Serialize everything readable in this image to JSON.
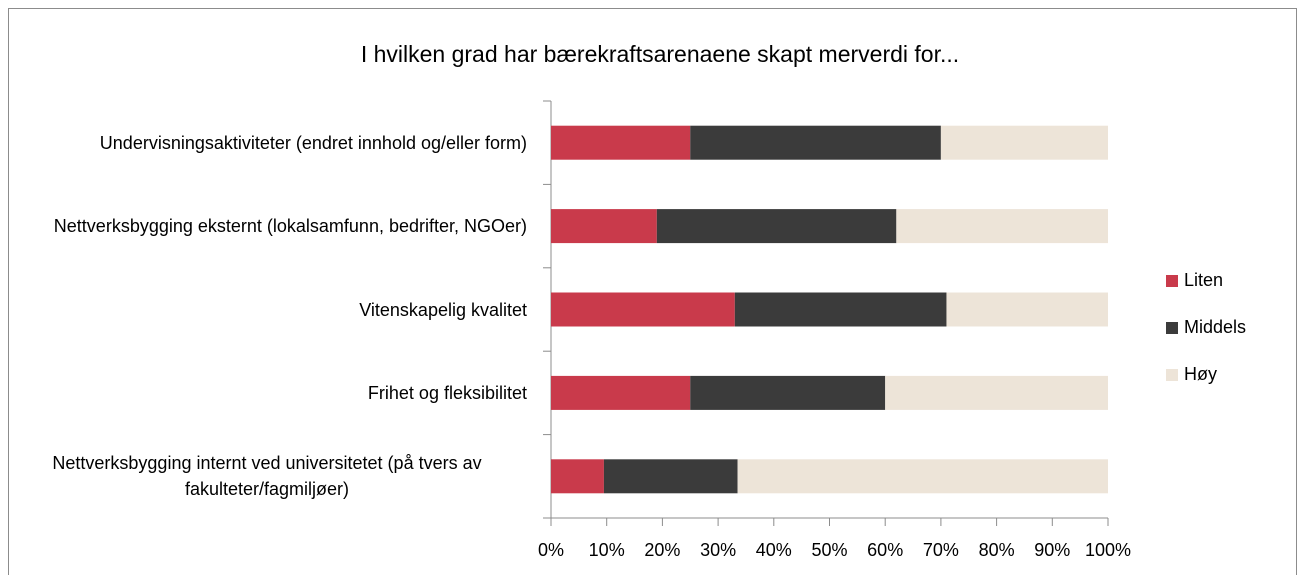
{
  "chart_data": {
    "type": "stacked_bar_horizontal",
    "title": "I hvilken grad har bærekraftsarenaene skapt merverdi for...",
    "categories": [
      "Undervisningsaktiviteter (endret innhold og/eller form)",
      "Nettverksbygging eksternt (lokalsamfunn, bedrifter, NGOer)",
      "Vitenskapelig kvalitet",
      "Frihet og fleksibilitet",
      "Nettverksbygging internt ved universitetet (på tvers av fakulteter/fagmiljøer)"
    ],
    "series": [
      {
        "name": "Liten",
        "color": "#c93a4b",
        "values": [
          25,
          19,
          33,
          25,
          9.5
        ]
      },
      {
        "name": "Middels",
        "color": "#3b3b3b",
        "values": [
          45,
          43,
          38,
          35,
          24
        ]
      },
      {
        "name": "Høy",
        "color": "#ede4d8",
        "values": [
          30,
          38,
          29,
          40,
          66.5
        ]
      }
    ],
    "xlim": [
      0,
      100
    ],
    "xticks": [
      {
        "value": 0,
        "label": "0%"
      },
      {
        "value": 10,
        "label": "10%"
      },
      {
        "value": 20,
        "label": "20%"
      },
      {
        "value": 30,
        "label": "30%"
      },
      {
        "value": 40,
        "label": "40%"
      },
      {
        "value": 50,
        "label": "50%"
      },
      {
        "value": 60,
        "label": "60%"
      },
      {
        "value": 70,
        "label": "70%"
      },
      {
        "value": 80,
        "label": "80%"
      },
      {
        "value": 90,
        "label": "90%"
      },
      {
        "value": 100,
        "label": "100%"
      }
    ],
    "legend": "right"
  }
}
